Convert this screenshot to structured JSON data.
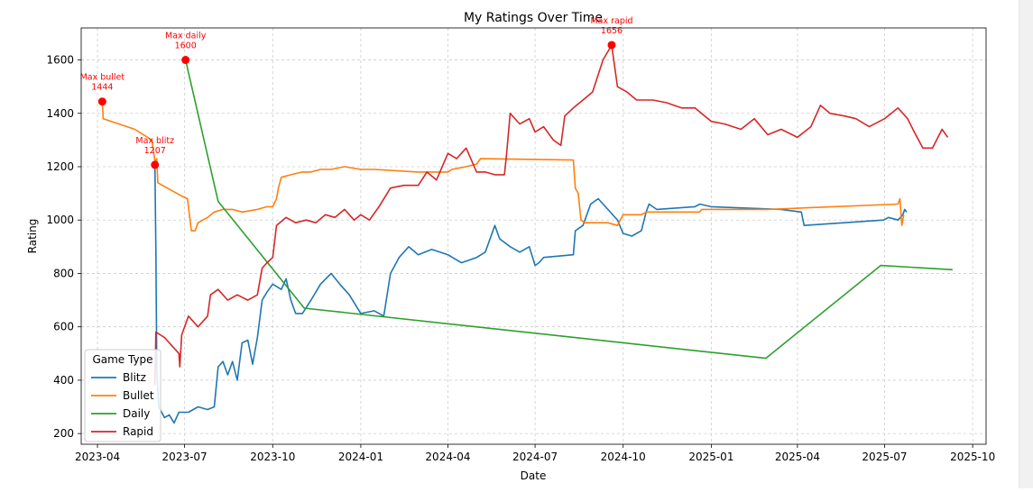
{
  "chart_data": {
    "type": "line",
    "title": "My Ratings Over Time",
    "xlabel": "Date",
    "ylabel": "Rating",
    "x_type": "date",
    "xlim": [
      "2023-03-15",
      "2025-10-15"
    ],
    "ylim": [
      160,
      1720
    ],
    "x_ticks": [
      {
        "value": "2023-04-01",
        "label": "2023-04"
      },
      {
        "value": "2023-07-01",
        "label": "2023-07"
      },
      {
        "value": "2023-10-01",
        "label": "2023-10"
      },
      {
        "value": "2024-01-01",
        "label": "2024-01"
      },
      {
        "value": "2024-04-01",
        "label": "2024-04"
      },
      {
        "value": "2024-07-01",
        "label": "2024-07"
      },
      {
        "value": "2024-10-01",
        "label": "2024-10"
      },
      {
        "value": "2025-01-01",
        "label": "2025-01"
      },
      {
        "value": "2025-04-01",
        "label": "2025-04"
      },
      {
        "value": "2025-07-01",
        "label": "2025-07"
      },
      {
        "value": "2025-10-01",
        "label": "2025-10"
      }
    ],
    "y_ticks": [
      200,
      400,
      600,
      800,
      1000,
      1200,
      1400,
      1600
    ],
    "grid": true,
    "legend": {
      "title": "Game Type",
      "placement": "lower-left"
    },
    "series": [
      {
        "name": "Blitz",
        "color": "#1f77b4",
        "points": [
          [
            "2023-05-31",
            1207
          ],
          [
            "2023-06-01",
            880
          ],
          [
            "2023-06-02",
            430
          ],
          [
            "2023-06-04",
            300
          ],
          [
            "2023-06-10",
            260
          ],
          [
            "2023-06-15",
            270
          ],
          [
            "2023-06-20",
            240
          ],
          [
            "2023-06-25",
            280
          ],
          [
            "2023-07-05",
            280
          ],
          [
            "2023-07-15",
            300
          ],
          [
            "2023-07-25",
            290
          ],
          [
            "2023-08-01",
            300
          ],
          [
            "2023-08-05",
            450
          ],
          [
            "2023-08-10",
            470
          ],
          [
            "2023-08-15",
            420
          ],
          [
            "2023-08-20",
            470
          ],
          [
            "2023-08-25",
            400
          ],
          [
            "2023-08-30",
            540
          ],
          [
            "2023-09-05",
            550
          ],
          [
            "2023-09-10",
            460
          ],
          [
            "2023-09-15",
            560
          ],
          [
            "2023-09-20",
            700
          ],
          [
            "2023-09-25",
            730
          ],
          [
            "2023-10-01",
            760
          ],
          [
            "2023-10-10",
            740
          ],
          [
            "2023-10-15",
            780
          ],
          [
            "2023-10-20",
            700
          ],
          [
            "2023-10-25",
            650
          ],
          [
            "2023-11-01",
            650
          ],
          [
            "2023-11-10",
            700
          ],
          [
            "2023-11-20",
            760
          ],
          [
            "2023-12-01",
            800
          ],
          [
            "2023-12-10",
            760
          ],
          [
            "2023-12-20",
            720
          ],
          [
            "2024-01-01",
            650
          ],
          [
            "2024-01-15",
            660
          ],
          [
            "2024-01-25",
            640
          ],
          [
            "2024-02-01",
            800
          ],
          [
            "2024-02-10",
            860
          ],
          [
            "2024-02-20",
            900
          ],
          [
            "2024-03-01",
            870
          ],
          [
            "2024-03-15",
            890
          ],
          [
            "2024-04-01",
            870
          ],
          [
            "2024-04-15",
            840
          ],
          [
            "2024-05-01",
            860
          ],
          [
            "2024-05-10",
            880
          ],
          [
            "2024-05-20",
            980
          ],
          [
            "2024-05-25",
            930
          ],
          [
            "2024-06-05",
            900
          ],
          [
            "2024-06-15",
            880
          ],
          [
            "2024-06-25",
            900
          ],
          [
            "2024-07-01",
            830
          ],
          [
            "2024-07-05",
            840
          ],
          [
            "2024-07-10",
            860
          ],
          [
            "2024-08-10",
            870
          ],
          [
            "2024-08-12",
            960
          ],
          [
            "2024-08-20",
            980
          ],
          [
            "2024-08-28",
            1060
          ],
          [
            "2024-09-05",
            1080
          ],
          [
            "2024-09-15",
            1040
          ],
          [
            "2024-09-25",
            1000
          ],
          [
            "2024-10-01",
            950
          ],
          [
            "2024-10-10",
            940
          ],
          [
            "2024-10-20",
            960
          ],
          [
            "2024-10-25",
            1030
          ],
          [
            "2024-10-28",
            1060
          ],
          [
            "2024-11-05",
            1040
          ],
          [
            "2024-12-15",
            1050
          ],
          [
            "2024-12-20",
            1060
          ],
          [
            "2025-01-01",
            1050
          ],
          [
            "2025-03-15",
            1040
          ],
          [
            "2025-04-05",
            1030
          ],
          [
            "2025-04-08",
            980
          ],
          [
            "2025-06-30",
            1000
          ],
          [
            "2025-07-05",
            1010
          ],
          [
            "2025-07-15",
            1000
          ],
          [
            "2025-07-20",
            1020
          ],
          [
            "2025-07-22",
            1040
          ],
          [
            "2025-07-24",
            1030
          ]
        ]
      },
      {
        "name": "Bullet",
        "color": "#ff7f0e",
        "points": [
          [
            "2023-04-06",
            1444
          ],
          [
            "2023-04-07",
            1380
          ],
          [
            "2023-05-10",
            1340
          ],
          [
            "2023-05-28",
            1300
          ],
          [
            "2023-05-31",
            1220
          ],
          [
            "2023-06-02",
            1230
          ],
          [
            "2023-06-03",
            1140
          ],
          [
            "2023-06-28",
            1090
          ],
          [
            "2023-07-04",
            1080
          ],
          [
            "2023-07-08",
            960
          ],
          [
            "2023-07-12",
            960
          ],
          [
            "2023-07-15",
            990
          ],
          [
            "2023-07-20",
            1000
          ],
          [
            "2023-07-25",
            1010
          ],
          [
            "2023-08-01",
            1030
          ],
          [
            "2023-08-10",
            1040
          ],
          [
            "2023-08-20",
            1040
          ],
          [
            "2023-08-30",
            1030
          ],
          [
            "2023-09-15",
            1040
          ],
          [
            "2023-09-25",
            1050
          ],
          [
            "2023-10-01",
            1050
          ],
          [
            "2023-10-05",
            1080
          ],
          [
            "2023-10-07",
            1120
          ],
          [
            "2023-10-10",
            1160
          ],
          [
            "2023-10-20",
            1170
          ],
          [
            "2023-11-01",
            1180
          ],
          [
            "2023-11-10",
            1180
          ],
          [
            "2023-11-20",
            1190
          ],
          [
            "2023-12-01",
            1190
          ],
          [
            "2023-12-15",
            1200
          ],
          [
            "2024-01-01",
            1190
          ],
          [
            "2024-01-15",
            1190
          ],
          [
            "2024-03-01",
            1180
          ],
          [
            "2024-03-15",
            1180
          ],
          [
            "2024-04-01",
            1180
          ],
          [
            "2024-04-05",
            1190
          ],
          [
            "2024-04-20",
            1200
          ],
          [
            "2024-05-01",
            1210
          ],
          [
            "2024-05-05",
            1230
          ],
          [
            "2024-08-10",
            1225
          ],
          [
            "2024-08-12",
            1120
          ],
          [
            "2024-08-15",
            1100
          ],
          [
            "2024-08-18",
            1000
          ],
          [
            "2024-08-22",
            990
          ],
          [
            "2024-09-05",
            990
          ],
          [
            "2024-09-15",
            990
          ],
          [
            "2024-09-25",
            980
          ],
          [
            "2024-10-01",
            1020
          ],
          [
            "2024-10-20",
            1020
          ],
          [
            "2024-10-25",
            1030
          ],
          [
            "2024-12-20",
            1030
          ],
          [
            "2024-12-22",
            1040
          ],
          [
            "2025-03-01",
            1040
          ],
          [
            "2025-07-15",
            1060
          ],
          [
            "2025-07-17",
            1080
          ],
          [
            "2025-07-19",
            980
          ],
          [
            "2025-07-21",
            1020
          ]
        ]
      },
      {
        "name": "Daily",
        "color": "#2ca02c",
        "points": [
          [
            "2023-07-02",
            1600
          ],
          [
            "2023-08-05",
            1070
          ],
          [
            "2023-11-03",
            670
          ],
          [
            "2025-02-27",
            482
          ],
          [
            "2025-06-27",
            830
          ],
          [
            "2025-09-10",
            814
          ]
        ]
      },
      {
        "name": "Rapid",
        "color": "#d62728",
        "points": [
          [
            "2023-05-31",
            380
          ],
          [
            "2023-06-01",
            580
          ],
          [
            "2023-06-10",
            560
          ],
          [
            "2023-06-25",
            500
          ],
          [
            "2023-06-26",
            450
          ],
          [
            "2023-06-28",
            570
          ],
          [
            "2023-07-05",
            640
          ],
          [
            "2023-07-15",
            600
          ],
          [
            "2023-07-25",
            640
          ],
          [
            "2023-07-28",
            720
          ],
          [
            "2023-08-05",
            740
          ],
          [
            "2023-08-15",
            700
          ],
          [
            "2023-08-25",
            720
          ],
          [
            "2023-09-05",
            700
          ],
          [
            "2023-09-15",
            720
          ],
          [
            "2023-09-20",
            820
          ],
          [
            "2023-09-25",
            840
          ],
          [
            "2023-10-01",
            860
          ],
          [
            "2023-10-05",
            980
          ],
          [
            "2023-10-15",
            1010
          ],
          [
            "2023-10-25",
            990
          ],
          [
            "2023-11-05",
            1000
          ],
          [
            "2023-11-15",
            990
          ],
          [
            "2023-11-25",
            1020
          ],
          [
            "2023-12-05",
            1010
          ],
          [
            "2023-12-15",
            1040
          ],
          [
            "2023-12-25",
            1000
          ],
          [
            "2024-01-01",
            1020
          ],
          [
            "2024-01-10",
            1000
          ],
          [
            "2024-01-20",
            1050
          ],
          [
            "2024-02-01",
            1120
          ],
          [
            "2024-02-15",
            1130
          ],
          [
            "2024-03-01",
            1130
          ],
          [
            "2024-03-10",
            1180
          ],
          [
            "2024-03-20",
            1150
          ],
          [
            "2024-04-01",
            1250
          ],
          [
            "2024-04-10",
            1230
          ],
          [
            "2024-04-20",
            1270
          ],
          [
            "2024-05-01",
            1180
          ],
          [
            "2024-05-10",
            1180
          ],
          [
            "2024-05-20",
            1170
          ],
          [
            "2024-05-30",
            1170
          ],
          [
            "2024-06-01",
            1240
          ],
          [
            "2024-06-05",
            1400
          ],
          [
            "2024-06-15",
            1360
          ],
          [
            "2024-06-25",
            1380
          ],
          [
            "2024-07-01",
            1330
          ],
          [
            "2024-07-10",
            1350
          ],
          [
            "2024-07-20",
            1300
          ],
          [
            "2024-07-28",
            1280
          ],
          [
            "2024-08-01",
            1390
          ],
          [
            "2024-08-10",
            1420
          ],
          [
            "2024-08-20",
            1450
          ],
          [
            "2024-08-30",
            1480
          ],
          [
            "2024-09-10",
            1600
          ],
          [
            "2024-09-19",
            1656
          ],
          [
            "2024-09-25",
            1500
          ],
          [
            "2024-10-05",
            1480
          ],
          [
            "2024-10-15",
            1450
          ],
          [
            "2024-11-01",
            1450
          ],
          [
            "2024-11-15",
            1440
          ],
          [
            "2024-12-01",
            1420
          ],
          [
            "2024-12-15",
            1420
          ],
          [
            "2025-01-01",
            1370
          ],
          [
            "2025-01-15",
            1360
          ],
          [
            "2025-02-01",
            1340
          ],
          [
            "2025-02-15",
            1380
          ],
          [
            "2025-03-01",
            1320
          ],
          [
            "2025-03-15",
            1340
          ],
          [
            "2025-04-01",
            1310
          ],
          [
            "2025-04-15",
            1350
          ],
          [
            "2025-04-25",
            1430
          ],
          [
            "2025-05-05",
            1400
          ],
          [
            "2025-05-20",
            1390
          ],
          [
            "2025-06-01",
            1380
          ],
          [
            "2025-06-15",
            1350
          ],
          [
            "2025-07-01",
            1380
          ],
          [
            "2025-07-15",
            1420
          ],
          [
            "2025-07-25",
            1380
          ],
          [
            "2025-08-01",
            1330
          ],
          [
            "2025-08-10",
            1270
          ],
          [
            "2025-08-20",
            1270
          ],
          [
            "2025-08-30",
            1340
          ],
          [
            "2025-09-05",
            1310
          ]
        ]
      }
    ],
    "annotations": [
      {
        "label": "Max bullet",
        "value_text": "1444",
        "x": "2023-04-06",
        "y": 1444,
        "color": "#ff0000"
      },
      {
        "label": "Max blitz",
        "value_text": "1207",
        "x": "2023-05-31",
        "y": 1207,
        "color": "#ff0000"
      },
      {
        "label": "Max daily",
        "value_text": "1600",
        "x": "2023-07-02",
        "y": 1600,
        "color": "#ff0000"
      },
      {
        "label": "Max rapid",
        "value_text": "1656",
        "x": "2024-09-19",
        "y": 1656,
        "color": "#ff0000"
      }
    ]
  }
}
